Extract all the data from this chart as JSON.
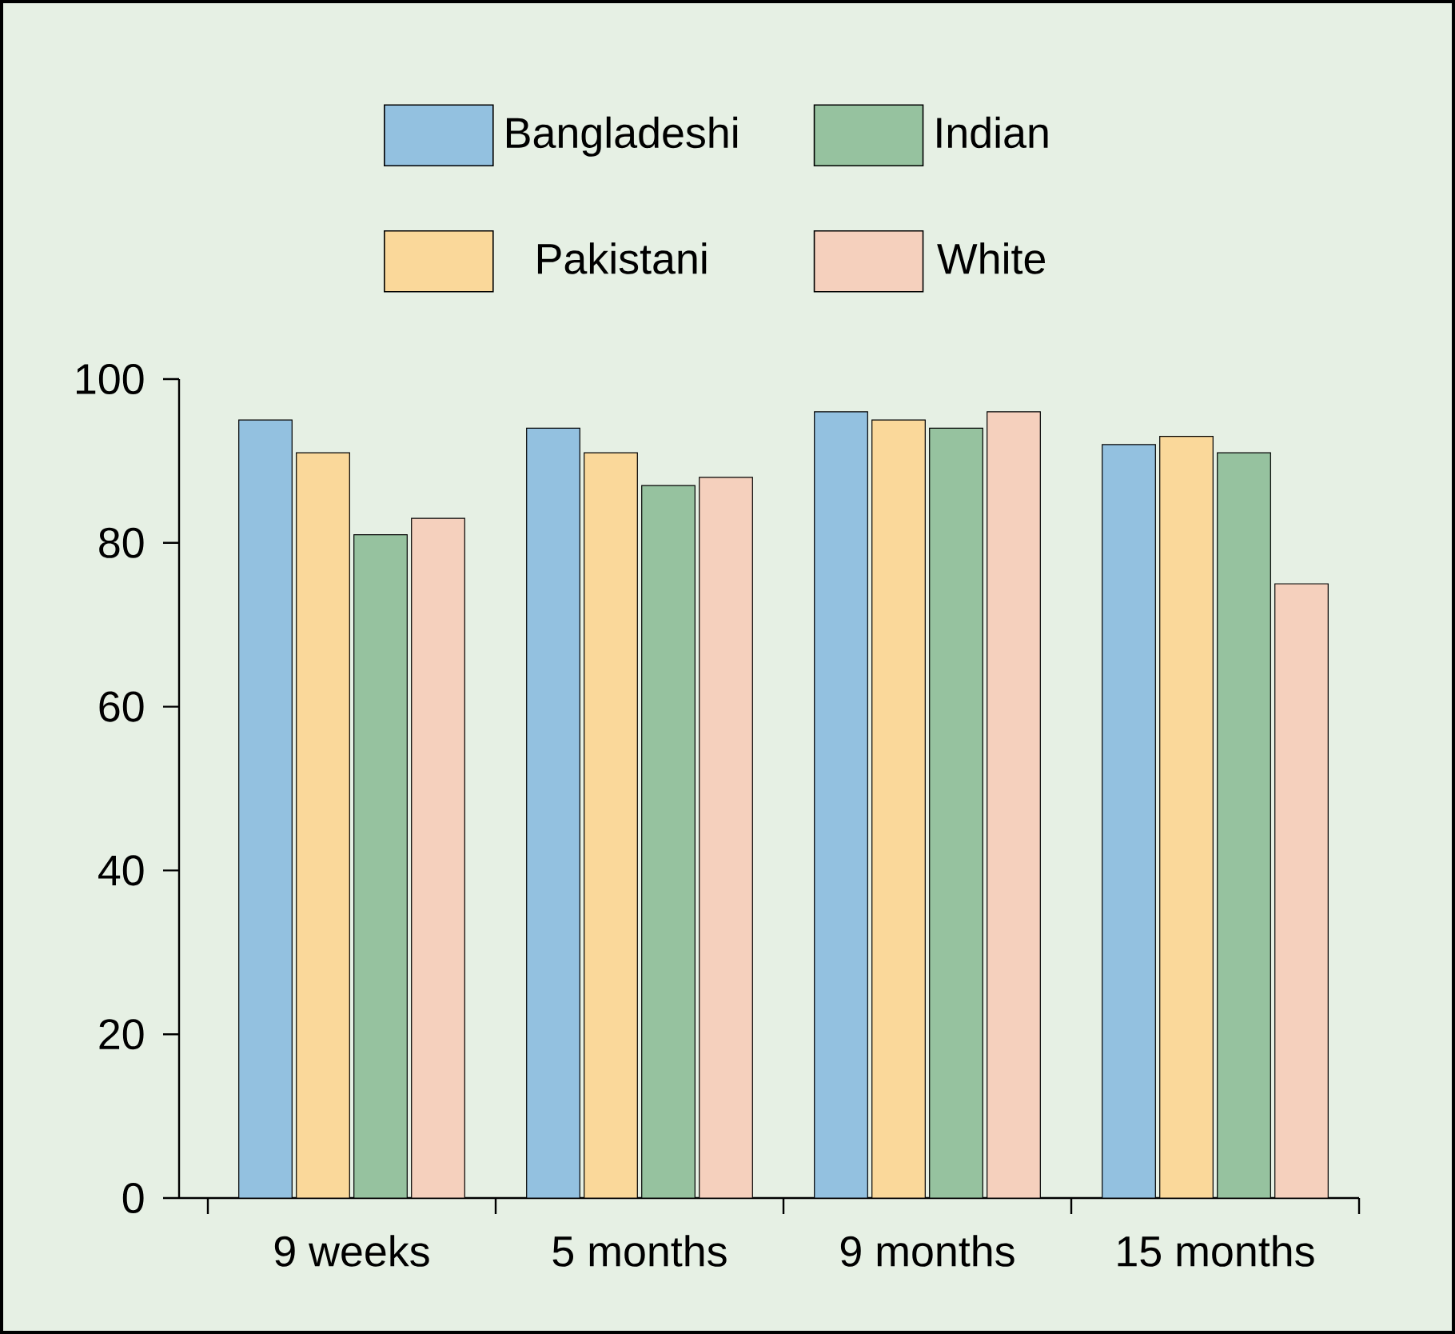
{
  "chart_data": {
    "type": "bar",
    "categories": [
      "9 weeks",
      "5 months",
      "9 months",
      "15 months"
    ],
    "series": [
      {
        "name": "Bangladeshi",
        "color": "#93c1e0",
        "values": [
          95,
          94,
          96,
          92
        ]
      },
      {
        "name": "Pakistani",
        "color": "#fad89a",
        "values": [
          91,
          91,
          95,
          93
        ]
      },
      {
        "name": "Indian",
        "color": "#96c29f",
        "values": [
          81,
          87,
          94,
          91
        ]
      },
      {
        "name": "White",
        "color": "#f5d0bd",
        "values": [
          83,
          88,
          96,
          75
        ]
      }
    ],
    "ylim": [
      0,
      100
    ],
    "yticks": [
      0,
      20,
      40,
      60,
      80,
      100
    ],
    "legend": "top"
  }
}
